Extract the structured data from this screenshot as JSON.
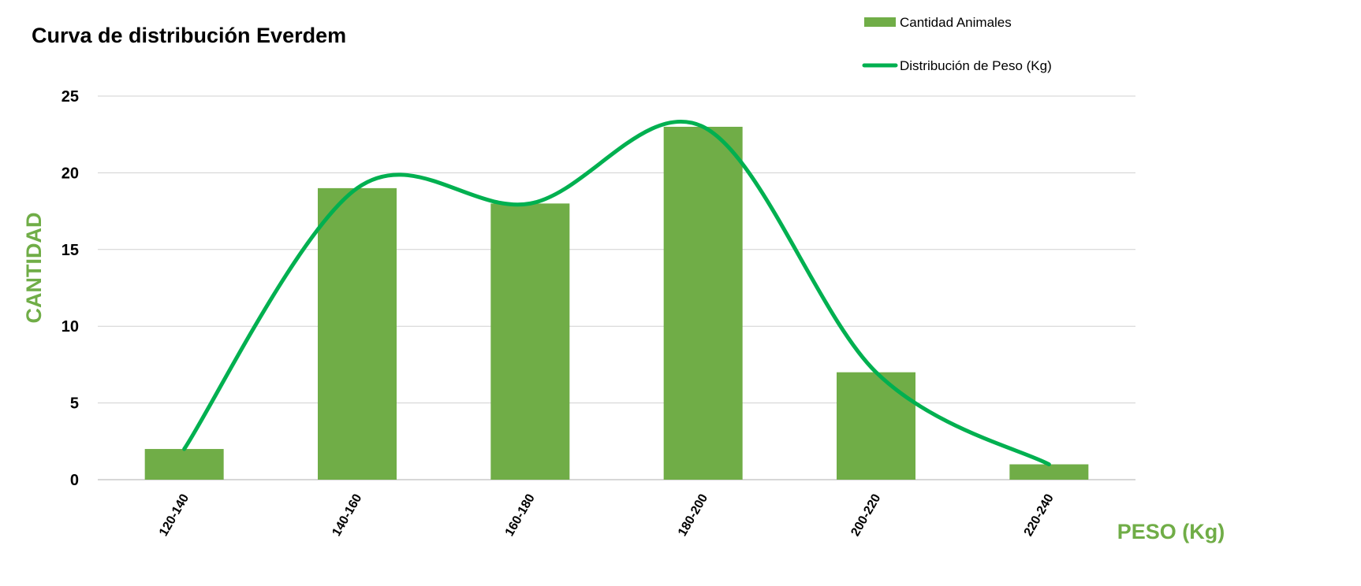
{
  "chart_data": {
    "type": "bar",
    "title": "Curva de distribución Everdem",
    "xlabel": "PESO (Kg)",
    "ylabel": "CANTIDAD",
    "categories": [
      "120-140",
      "140-160",
      "160-180",
      "180-200",
      "200-220",
      "220-240"
    ],
    "ylim": [
      0,
      25
    ],
    "yticks": [
      0,
      5,
      10,
      15,
      20,
      25
    ],
    "grid": true,
    "legend_position": "top-right",
    "series": [
      {
        "name": "Cantidad Animales",
        "kind": "bar",
        "color": "#70ad47",
        "values": [
          2,
          19,
          18,
          23,
          7,
          1
        ]
      },
      {
        "name": "Distribución de Peso (Kg)",
        "kind": "line",
        "smooth": true,
        "color": "#00b050",
        "values": [
          2,
          19,
          18,
          23,
          7,
          1
        ]
      }
    ],
    "axis_label_color": "#70ad47"
  }
}
